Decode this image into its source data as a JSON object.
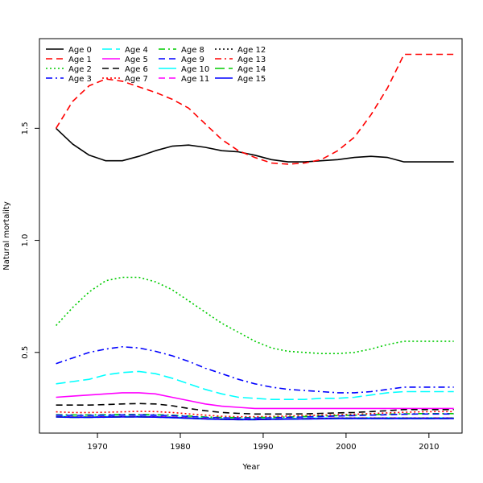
{
  "chart_data": {
    "type": "line",
    "xlabel": "Year",
    "ylabel": "Natural mortality",
    "xlim": [
      1963,
      2014
    ],
    "ylim": [
      0.14,
      1.9
    ],
    "xticks": [
      1970,
      1980,
      1990,
      2000,
      2010
    ],
    "yticks": [
      0.5,
      1.0,
      1.5
    ],
    "ytick_labels": [
      "0.5",
      "1.0",
      "1.5"
    ],
    "legend_placement": "top-left",
    "x": [
      1965,
      1967,
      1969,
      1971,
      1973,
      1975,
      1977,
      1979,
      1981,
      1983,
      1985,
      1987,
      1989,
      1991,
      1993,
      1995,
      1997,
      1999,
      2001,
      2003,
      2005,
      2007,
      2009,
      2011,
      2013
    ],
    "series": [
      {
        "name": "Age 0",
        "color": "#000000",
        "dash": "solid",
        "values": [
          1.5,
          1.43,
          1.38,
          1.355,
          1.355,
          1.375,
          1.4,
          1.42,
          1.425,
          1.415,
          1.4,
          1.395,
          1.38,
          1.36,
          1.35,
          1.35,
          1.355,
          1.36,
          1.37,
          1.375,
          1.37,
          1.35,
          1.35,
          1.35,
          1.35
        ]
      },
      {
        "name": "Age 1",
        "color": "#ff0000",
        "dash": "dashed",
        "values": [
          1.5,
          1.62,
          1.69,
          1.72,
          1.71,
          1.685,
          1.66,
          1.63,
          1.59,
          1.52,
          1.45,
          1.4,
          1.37,
          1.345,
          1.34,
          1.345,
          1.36,
          1.4,
          1.46,
          1.56,
          1.68,
          1.83,
          1.83,
          1.83,
          1.83
        ]
      },
      {
        "name": "Age 2",
        "color": "#00cc00",
        "dash": "dotted",
        "values": [
          0.62,
          0.7,
          0.77,
          0.82,
          0.835,
          0.835,
          0.815,
          0.78,
          0.73,
          0.68,
          0.63,
          0.59,
          0.55,
          0.52,
          0.505,
          0.5,
          0.495,
          0.495,
          0.5,
          0.515,
          0.535,
          0.55,
          0.55,
          0.55,
          0.55
        ]
      },
      {
        "name": "Age 3",
        "color": "#0000ff",
        "dash": "dashdot",
        "values": [
          0.45,
          0.475,
          0.5,
          0.515,
          0.525,
          0.52,
          0.505,
          0.485,
          0.46,
          0.43,
          0.405,
          0.38,
          0.36,
          0.345,
          0.335,
          0.33,
          0.325,
          0.32,
          0.32,
          0.325,
          0.335,
          0.345,
          0.345,
          0.345,
          0.345
        ]
      },
      {
        "name": "Age 4",
        "color": "#00ffff",
        "dash": "longdash",
        "values": [
          0.36,
          0.37,
          0.38,
          0.4,
          0.41,
          0.415,
          0.405,
          0.385,
          0.36,
          0.335,
          0.315,
          0.3,
          0.295,
          0.29,
          0.29,
          0.29,
          0.295,
          0.295,
          0.3,
          0.31,
          0.32,
          0.325,
          0.325,
          0.325,
          0.325
        ]
      },
      {
        "name": "Age 5",
        "color": "#ff00ff",
        "dash": "solid",
        "values": [
          0.3,
          0.305,
          0.31,
          0.315,
          0.32,
          0.32,
          0.315,
          0.3,
          0.285,
          0.27,
          0.26,
          0.255,
          0.25,
          0.25,
          0.25,
          0.25,
          0.25,
          0.25,
          0.25,
          0.25,
          0.25,
          0.25,
          0.25,
          0.25,
          0.25
        ]
      },
      {
        "name": "Age 6",
        "color": "#000000",
        "dash": "dashed",
        "values": [
          0.265,
          0.265,
          0.265,
          0.267,
          0.27,
          0.272,
          0.27,
          0.262,
          0.25,
          0.24,
          0.232,
          0.228,
          0.225,
          0.225,
          0.225,
          0.226,
          0.228,
          0.23,
          0.232,
          0.236,
          0.24,
          0.245,
          0.245,
          0.245,
          0.245
        ]
      },
      {
        "name": "Age 7",
        "color": "#ff0000",
        "dash": "dotted",
        "values": [
          0.235,
          0.232,
          0.232,
          0.233,
          0.235,
          0.237,
          0.236,
          0.232,
          0.226,
          0.22,
          0.215,
          0.213,
          0.213,
          0.214,
          0.216,
          0.218,
          0.22,
          0.222,
          0.224,
          0.227,
          0.23,
          0.233,
          0.235,
          0.236,
          0.236
        ]
      },
      {
        "name": "Age 8",
        "color": "#00cc00",
        "dash": "dashdot",
        "values": [
          0.222,
          0.221,
          0.221,
          0.222,
          0.223,
          0.223,
          0.222,
          0.22,
          0.216,
          0.212,
          0.21,
          0.209,
          0.209,
          0.21,
          0.212,
          0.214,
          0.216,
          0.218,
          0.22,
          0.222,
          0.224,
          0.226,
          0.227,
          0.227,
          0.227
        ]
      },
      {
        "name": "Age 9",
        "color": "#0000ff",
        "dash": "dashed",
        "values": [
          0.22,
          0.219,
          0.219,
          0.22,
          0.221,
          0.221,
          0.22,
          0.218,
          0.214,
          0.21,
          0.208,
          0.207,
          0.207,
          0.208,
          0.21,
          0.212,
          0.214,
          0.216,
          0.218,
          0.22,
          0.222,
          0.224,
          0.225,
          0.225,
          0.225
        ]
      },
      {
        "name": "Age 10",
        "color": "#00ffff",
        "dash": "solid",
        "values": [
          0.215,
          0.213,
          0.213,
          0.214,
          0.215,
          0.215,
          0.214,
          0.212,
          0.209,
          0.206,
          0.204,
          0.203,
          0.203,
          0.204,
          0.205,
          0.206,
          0.207,
          0.208,
          0.208,
          0.208,
          0.208,
          0.208,
          0.208,
          0.208,
          0.208
        ]
      },
      {
        "name": "Age 11",
        "color": "#ff00ff",
        "dash": "dashed",
        "values": [
          0.214,
          0.212,
          0.212,
          0.213,
          0.214,
          0.214,
          0.213,
          0.211,
          0.208,
          0.205,
          0.203,
          0.202,
          0.202,
          0.203,
          0.204,
          0.205,
          0.206,
          0.207,
          0.207,
          0.207,
          0.207,
          0.207,
          0.207,
          0.207,
          0.207
        ]
      },
      {
        "name": "Age 12",
        "color": "#000000",
        "dash": "dotted",
        "values": [
          0.213,
          0.211,
          0.211,
          0.212,
          0.213,
          0.213,
          0.212,
          0.21,
          0.207,
          0.204,
          0.202,
          0.201,
          0.201,
          0.202,
          0.203,
          0.204,
          0.205,
          0.206,
          0.206,
          0.206,
          0.206,
          0.206,
          0.206,
          0.206,
          0.206
        ]
      },
      {
        "name": "Age 13",
        "color": "#ff0000",
        "dash": "dashdot",
        "values": [
          0.213,
          0.211,
          0.211,
          0.212,
          0.213,
          0.213,
          0.212,
          0.21,
          0.207,
          0.204,
          0.202,
          0.201,
          0.201,
          0.202,
          0.203,
          0.204,
          0.205,
          0.206,
          0.206,
          0.206,
          0.206,
          0.206,
          0.206,
          0.206,
          0.206
        ]
      },
      {
        "name": "Age 14",
        "color": "#00cc00",
        "dash": "longdash",
        "values": [
          0.212,
          0.21,
          0.21,
          0.211,
          0.212,
          0.212,
          0.211,
          0.209,
          0.206,
          0.203,
          0.201,
          0.2,
          0.2,
          0.201,
          0.202,
          0.203,
          0.204,
          0.205,
          0.205,
          0.205,
          0.205,
          0.205,
          0.205,
          0.205,
          0.205
        ]
      },
      {
        "name": "Age 15",
        "color": "#0000ff",
        "dash": "solid",
        "values": [
          0.212,
          0.21,
          0.21,
          0.211,
          0.212,
          0.212,
          0.211,
          0.209,
          0.206,
          0.203,
          0.201,
          0.2,
          0.2,
          0.201,
          0.202,
          0.203,
          0.204,
          0.205,
          0.205,
          0.205,
          0.205,
          0.205,
          0.205,
          0.205,
          0.205
        ]
      }
    ]
  }
}
